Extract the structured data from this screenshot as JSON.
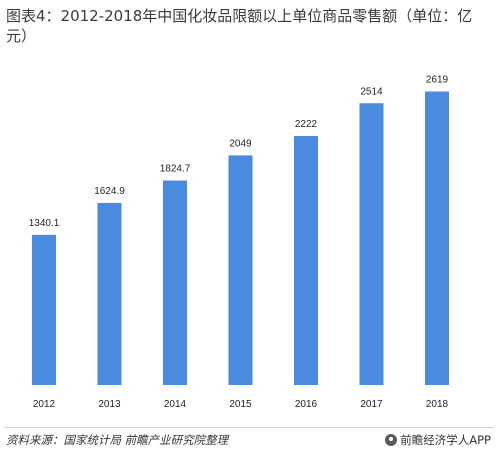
{
  "title": "图表4：2012-2018年中国化妆品限额以上单位商品零售额（单位：亿元）",
  "source": "资料来源：国家统计局 前瞻产业研究院整理",
  "brand": "前瞻经济学人APP",
  "colors": {
    "bar": "#4a8be0"
  },
  "chart_data": {
    "type": "bar",
    "categories": [
      "2012",
      "2013",
      "2014",
      "2015",
      "2016",
      "2017",
      "2018"
    ],
    "values": [
      1340.1,
      1624.9,
      1824.7,
      2049,
      2222,
      2514,
      2619
    ],
    "value_labels": [
      "1340.1",
      "1624.9",
      "1824.7",
      "2049",
      "2222",
      "2514",
      "2619"
    ],
    "title": "",
    "xlabel": "",
    "ylabel": "",
    "ylim": [
      0,
      2900
    ],
    "grid": false,
    "legend": "none"
  }
}
